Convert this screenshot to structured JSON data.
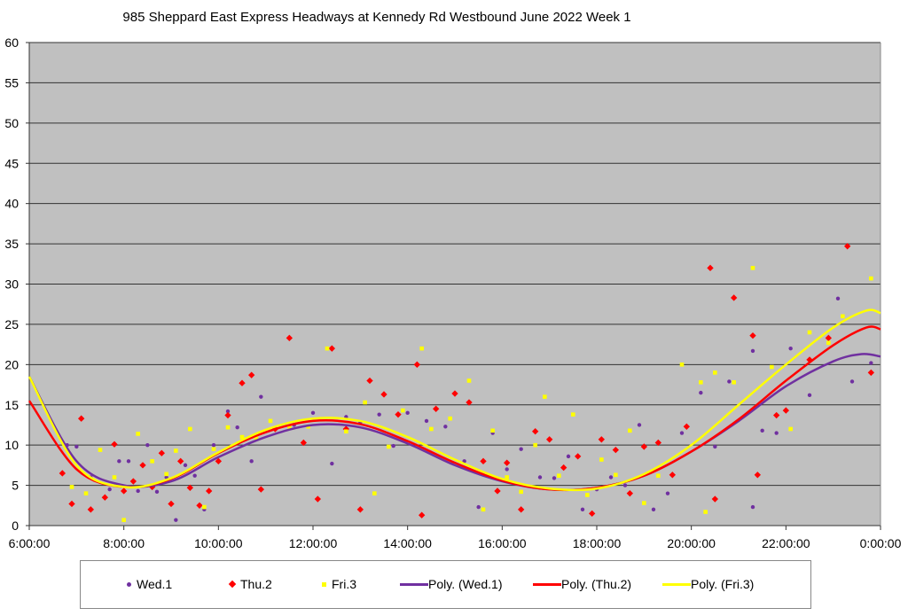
{
  "chart_data": {
    "type": "scatter",
    "title": "985 Sheppard East Express Headways at Kennedy Rd Westbound June 2022  Week 1",
    "xlabel": "",
    "ylabel": "",
    "xlim": [
      6,
      24
    ],
    "ylim": [
      0,
      60
    ],
    "x_ticks": [
      6,
      8,
      10,
      12,
      14,
      16,
      18,
      20,
      22,
      24
    ],
    "x_tick_labels": [
      "6:00:00",
      "8:00:00",
      "10:00:00",
      "12:00:00",
      "14:00:00",
      "16:00:00",
      "18:00:00",
      "20:00:00",
      "22:00:00",
      "0:00:00"
    ],
    "y_tick_labels": [
      "0",
      "5",
      "10",
      "15",
      "20",
      "25",
      "30",
      "35",
      "40",
      "45",
      "50",
      "55",
      "60"
    ],
    "grid": true,
    "legend_position": "bottom",
    "colors": {
      "Wed.1": "#7030a0",
      "Thu.2": "#ff0000",
      "Fri.3": "#ffff00",
      "plot_bg": "#c0c0c0"
    },
    "series": [
      {
        "name": "Wed.1",
        "marker": "circle",
        "points": [
          [
            6.8,
            10
          ],
          [
            7.0,
            9.8
          ],
          [
            7.3,
            6
          ],
          [
            7.7,
            4.5
          ],
          [
            7.9,
            8
          ],
          [
            8.1,
            8
          ],
          [
            8.3,
            4.3
          ],
          [
            8.5,
            10
          ],
          [
            8.7,
            4.2
          ],
          [
            8.9,
            6
          ],
          [
            9.1,
            0.7
          ],
          [
            9.3,
            7.5
          ],
          [
            9.5,
            6.2
          ],
          [
            9.7,
            2
          ],
          [
            9.9,
            10
          ],
          [
            10.2,
            14.2
          ],
          [
            10.4,
            12.2
          ],
          [
            10.7,
            8
          ],
          [
            10.9,
            16
          ],
          [
            11.2,
            12.1
          ],
          [
            11.6,
            12.5
          ],
          [
            12.0,
            14
          ],
          [
            12.4,
            7.7
          ],
          [
            12.7,
            13.5
          ],
          [
            13.0,
            12.8
          ],
          [
            13.4,
            13.8
          ],
          [
            13.7,
            9.9
          ],
          [
            14.0,
            14
          ],
          [
            14.4,
            13
          ],
          [
            14.8,
            12.3
          ],
          [
            15.2,
            8
          ],
          [
            15.5,
            2.3
          ],
          [
            15.8,
            11.5
          ],
          [
            16.1,
            7
          ],
          [
            16.4,
            9.5
          ],
          [
            16.8,
            6
          ],
          [
            17.1,
            5.9
          ],
          [
            17.4,
            8.6
          ],
          [
            17.7,
            2
          ],
          [
            18.0,
            4.5
          ],
          [
            18.3,
            6
          ],
          [
            18.6,
            5
          ],
          [
            18.9,
            12.5
          ],
          [
            19.2,
            2
          ],
          [
            19.5,
            4
          ],
          [
            19.8,
            11.5
          ],
          [
            20.2,
            16.5
          ],
          [
            20.5,
            9.8
          ],
          [
            20.8,
            17.9
          ],
          [
            21.3,
            21.7
          ],
          [
            21.5,
            11.8
          ],
          [
            21.8,
            11.5
          ],
          [
            22.1,
            22
          ],
          [
            22.5,
            16.2
          ],
          [
            23.1,
            28.2
          ],
          [
            23.4,
            17.9
          ],
          [
            23.8,
            20.2
          ],
          [
            21.3,
            2.3
          ]
        ]
      },
      {
        "name": "Thu.2",
        "marker": "diamond",
        "points": [
          [
            6.7,
            6.5
          ],
          [
            6.9,
            2.7
          ],
          [
            7.1,
            13.3
          ],
          [
            7.3,
            2
          ],
          [
            7.6,
            3.5
          ],
          [
            7.8,
            10.1
          ],
          [
            8.0,
            4.3
          ],
          [
            8.2,
            5.5
          ],
          [
            8.4,
            7.5
          ],
          [
            8.6,
            4.8
          ],
          [
            8.8,
            9
          ],
          [
            9.0,
            2.7
          ],
          [
            9.2,
            8
          ],
          [
            9.4,
            4.7
          ],
          [
            9.6,
            2.5
          ],
          [
            9.8,
            4.3
          ],
          [
            10.0,
            8
          ],
          [
            10.2,
            13.7
          ],
          [
            10.5,
            17.7
          ],
          [
            10.7,
            18.7
          ],
          [
            10.9,
            4.5
          ],
          [
            11.2,
            12
          ],
          [
            11.5,
            23.3
          ],
          [
            11.8,
            10.3
          ],
          [
            12.1,
            3.3
          ],
          [
            12.4,
            22
          ],
          [
            12.7,
            12
          ],
          [
            13.0,
            2
          ],
          [
            13.2,
            18
          ],
          [
            13.5,
            16.3
          ],
          [
            13.8,
            13.8
          ],
          [
            14.2,
            20
          ],
          [
            14.3,
            1.3
          ],
          [
            14.6,
            14.5
          ],
          [
            15.0,
            16.4
          ],
          [
            15.3,
            15.3
          ],
          [
            15.6,
            8
          ],
          [
            15.9,
            4.3
          ],
          [
            16.1,
            7.8
          ],
          [
            16.4,
            2
          ],
          [
            16.7,
            11.7
          ],
          [
            17.0,
            10.7
          ],
          [
            17.3,
            7.2
          ],
          [
            17.6,
            8.6
          ],
          [
            17.9,
            1.5
          ],
          [
            18.1,
            10.7
          ],
          [
            18.4,
            9.4
          ],
          [
            18.7,
            4
          ],
          [
            19.0,
            9.8
          ],
          [
            19.3,
            10.3
          ],
          [
            19.6,
            6.3
          ],
          [
            19.9,
            12.3
          ],
          [
            20.4,
            32
          ],
          [
            20.5,
            3.3
          ],
          [
            20.9,
            28.3
          ],
          [
            21.3,
            23.6
          ],
          [
            21.4,
            6.3
          ],
          [
            21.8,
            13.7
          ],
          [
            22.0,
            14.3
          ],
          [
            22.5,
            20.6
          ],
          [
            22.9,
            23.3
          ],
          [
            23.3,
            34.7
          ],
          [
            23.8,
            19
          ]
        ]
      },
      {
        "name": "Fri.3",
        "marker": "square",
        "points": [
          [
            6.9,
            4.8
          ],
          [
            7.2,
            4
          ],
          [
            7.5,
            9.4
          ],
          [
            7.8,
            6
          ],
          [
            8.0,
            0.7
          ],
          [
            8.3,
            11.4
          ],
          [
            8.6,
            8
          ],
          [
            8.9,
            6.4
          ],
          [
            9.1,
            9.3
          ],
          [
            9.4,
            12
          ],
          [
            9.7,
            2.3
          ],
          [
            9.9,
            9.5
          ],
          [
            10.2,
            12.2
          ],
          [
            10.5,
            11
          ],
          [
            10.8,
            10.8
          ],
          [
            11.1,
            13
          ],
          [
            11.5,
            12.3
          ],
          [
            11.9,
            12.3
          ],
          [
            12.3,
            22
          ],
          [
            12.7,
            11.7
          ],
          [
            13.1,
            15.3
          ],
          [
            13.3,
            4
          ],
          [
            13.6,
            9.8
          ],
          [
            13.9,
            14.3
          ],
          [
            14.3,
            22
          ],
          [
            14.5,
            12
          ],
          [
            14.9,
            13.3
          ],
          [
            15.3,
            18
          ],
          [
            15.6,
            2
          ],
          [
            15.8,
            11.8
          ],
          [
            16.1,
            6
          ],
          [
            16.4,
            4.2
          ],
          [
            16.7,
            10
          ],
          [
            16.9,
            16
          ],
          [
            17.2,
            6.2
          ],
          [
            17.5,
            13.8
          ],
          [
            17.8,
            3.8
          ],
          [
            18.1,
            8.2
          ],
          [
            18.4,
            6.3
          ],
          [
            18.7,
            11.8
          ],
          [
            19.0,
            2.8
          ],
          [
            19.3,
            6.2
          ],
          [
            19.8,
            20
          ],
          [
            20.2,
            17.8
          ],
          [
            20.5,
            19
          ],
          [
            20.9,
            17.8
          ],
          [
            21.3,
            32
          ],
          [
            21.7,
            19.7
          ],
          [
            22.1,
            12
          ],
          [
            22.5,
            24
          ],
          [
            22.9,
            22.7
          ],
          [
            23.2,
            26
          ],
          [
            23.8,
            30.7
          ],
          [
            20.3,
            1.7
          ]
        ]
      }
    ],
    "trendlines": [
      {
        "name": "Poly. (Wed.1)",
        "color": "#7030a0",
        "points": [
          [
            6,
            18.5
          ],
          [
            7,
            8
          ],
          [
            8,
            5
          ],
          [
            9,
            5.5
          ],
          [
            10,
            8.5
          ],
          [
            11,
            11
          ],
          [
            12,
            12.5
          ],
          [
            13,
            12.2
          ],
          [
            14,
            10.2
          ],
          [
            15,
            7.5
          ],
          [
            16,
            5.5
          ],
          [
            17,
            4.5
          ],
          [
            18,
            4.7
          ],
          [
            19,
            6.2
          ],
          [
            20,
            9.2
          ],
          [
            21,
            13
          ],
          [
            22,
            17.3
          ],
          [
            23,
            20.4
          ],
          [
            23.6,
            21.3
          ],
          [
            24,
            21
          ]
        ]
      },
      {
        "name": "Poly. (Thu.2)",
        "color": "#ff0000",
        "points": [
          [
            6,
            15.5
          ],
          [
            7,
            7
          ],
          [
            8,
            4.8
          ],
          [
            9,
            5.8
          ],
          [
            10,
            9
          ],
          [
            11,
            11.6
          ],
          [
            12,
            13
          ],
          [
            13,
            12.6
          ],
          [
            14,
            10.5
          ],
          [
            15,
            7.8
          ],
          [
            16,
            5.6
          ],
          [
            17,
            4.5
          ],
          [
            18,
            4.7
          ],
          [
            19,
            6.2
          ],
          [
            20,
            9.2
          ],
          [
            21,
            13.2
          ],
          [
            22,
            18
          ],
          [
            23,
            22.4
          ],
          [
            23.7,
            24.6
          ],
          [
            24,
            24.4
          ]
        ]
      },
      {
        "name": "Poly. (Fri.3)",
        "color": "#ffff00",
        "points": [
          [
            6,
            18.5
          ],
          [
            7,
            7.5
          ],
          [
            8,
            4.8
          ],
          [
            9,
            5.9
          ],
          [
            10,
            9.1
          ],
          [
            11,
            11.9
          ],
          [
            12,
            13.3
          ],
          [
            13,
            13
          ],
          [
            14,
            11
          ],
          [
            15,
            8.2
          ],
          [
            16,
            5.8
          ],
          [
            17,
            4.6
          ],
          [
            18,
            4.6
          ],
          [
            19,
            6.4
          ],
          [
            20,
            10
          ],
          [
            21,
            15
          ],
          [
            22,
            20
          ],
          [
            23,
            24.6
          ],
          [
            23.7,
            26.7
          ],
          [
            24,
            26.4
          ]
        ]
      }
    ],
    "legend": [
      "Wed.1",
      "Thu.2",
      "Fri.3",
      "Poly. (Wed.1)",
      "Poly. (Thu.2)",
      "Poly. (Fri.3)"
    ]
  }
}
